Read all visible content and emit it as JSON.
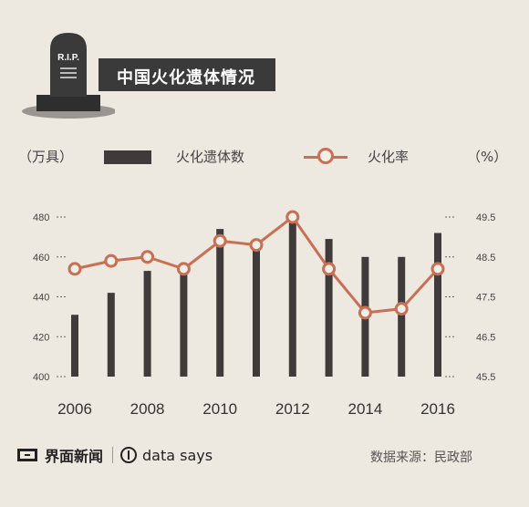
{
  "header": {
    "title": "中国火化遗体情况",
    "tombstone_label": "R.I.P."
  },
  "legend": {
    "units_left": "（万具）",
    "units_right": "（%）",
    "bar_label": "火化遗体数",
    "line_label": "火化率"
  },
  "footer": {
    "brand_cn": "界面新闻",
    "brand_en": "data says",
    "source": "数据来源：民政部"
  },
  "colors": {
    "background": "#ede8e0",
    "bar": "#3f3b3a",
    "line": "#c86f54",
    "title_bg": "#3a3a3a"
  },
  "chart_data": {
    "type": "bar",
    "x": [
      2006,
      2007,
      2008,
      2009,
      2010,
      2011,
      2012,
      2013,
      2014,
      2015,
      2016
    ],
    "x_tick_labels": [
      "2006",
      "2008",
      "2010",
      "2012",
      "2014",
      "2016"
    ],
    "series": [
      {
        "name": "火化遗体数",
        "type": "bar",
        "axis": "left",
        "values": [
          431,
          442,
          453,
          452,
          474,
          468,
          477,
          469,
          460,
          460,
          472
        ]
      },
      {
        "name": "火化率",
        "type": "line",
        "axis": "right",
        "values": [
          48.2,
          48.4,
          48.5,
          48.2,
          48.9,
          48.8,
          49.5,
          48.2,
          47.1,
          47.2,
          48.2
        ]
      }
    ],
    "left_axis": {
      "ticks": [
        "400",
        "420",
        "440",
        "460",
        "480"
      ],
      "ylim": [
        400,
        482
      ]
    },
    "right_axis": {
      "ticks": [
        "45.5",
        "46.5",
        "47.5",
        "48.5",
        "49.5"
      ],
      "ylim": [
        45.5,
        49.6
      ]
    },
    "grid": "dashed tick marks only",
    "legend_position": "top"
  }
}
